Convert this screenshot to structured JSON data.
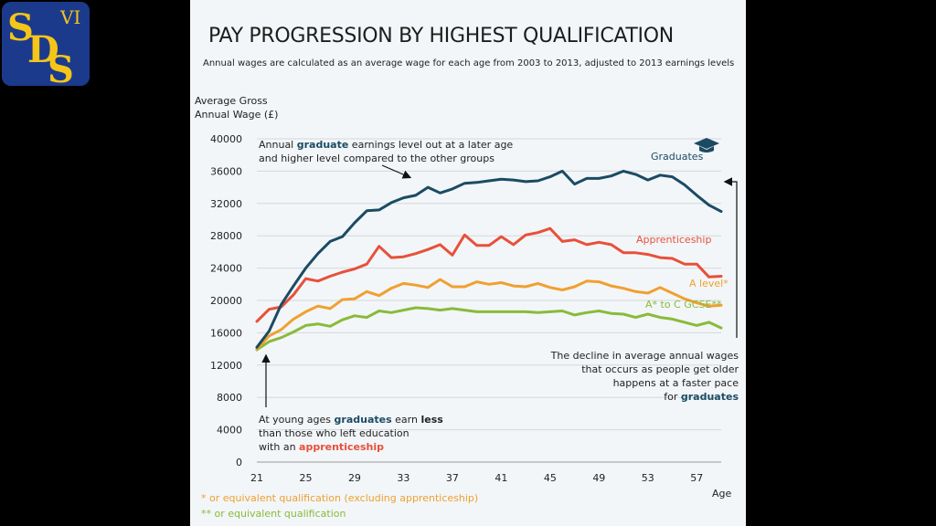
{
  "logo": {
    "text": "SDS",
    "numeral": "VI"
  },
  "header": {
    "title": "PAY PROGRESSION BY HIGHEST QUALIFICATION",
    "subtitle": "Annual wages are calculated as an average wage for each age from 2003 to 2013, adjusted to 2013 earnings levels"
  },
  "annotations": {
    "top": {
      "l1a": "Annual ",
      "l1b": "graduate",
      "l1c": " earnings level out at a later age",
      "l2": "and higher level compared to the other groups"
    },
    "bottom": {
      "l1a": "At young ages ",
      "l1b": "graduates",
      "l1c": " earn ",
      "l1d": "less",
      "l2": "than those who left education",
      "l3a": "with an ",
      "l3b": "apprenticeship"
    },
    "right": {
      "l1": "The decline in average annual wages",
      "l2": "that occurs as people get older",
      "l3": "happens at a faster pace",
      "l4a": "for ",
      "l4b": "graduates"
    }
  },
  "footnotes": {
    "f1": "* or equivalent qualification (excluding apprenticeship)",
    "f2": "** or equivalent qualification"
  },
  "colors": {
    "graduates": "#1b4b63",
    "apprenticeship": "#e8503a",
    "alevel": "#f0a030",
    "gcse": "#8aba3a",
    "grid": "#d4d8da"
  },
  "chart_data": {
    "type": "line",
    "ylabel_lines": [
      "Average Gross",
      "Annual Wage (£)"
    ],
    "xlabel": "Age",
    "xlim": [
      21,
      59
    ],
    "ylim": [
      0,
      40000
    ],
    "xticks": [
      21,
      25,
      29,
      33,
      37,
      41,
      45,
      49,
      53,
      57
    ],
    "yticks": [
      0,
      4000,
      8000,
      12000,
      16000,
      20000,
      24000,
      28000,
      32000,
      36000,
      40000
    ],
    "grid": true,
    "x": [
      21,
      22,
      23,
      24,
      25,
      26,
      27,
      28,
      29,
      30,
      31,
      32,
      33,
      34,
      35,
      36,
      37,
      38,
      39,
      40,
      41,
      42,
      43,
      44,
      45,
      46,
      47,
      48,
      49,
      50,
      51,
      52,
      53,
      54,
      55,
      56,
      57,
      58,
      59
    ],
    "series": [
      {
        "name": "Graduates",
        "key": "graduates",
        "values": [
          14200,
          16200,
          19500,
          21800,
          24000,
          25800,
          27300,
          27900,
          29600,
          31100,
          31200,
          32100,
          32700,
          33000,
          34000,
          33300,
          33800,
          34500,
          34600,
          34800,
          35000,
          34900,
          34700,
          34800,
          35300,
          36000,
          34400,
          35100,
          35100,
          35400,
          36000,
          35600,
          34900,
          35500,
          35300,
          34300,
          33000,
          31800,
          31000
        ]
      },
      {
        "name": "Apprenticeship",
        "key": "apprenticeship",
        "values": [
          17400,
          18900,
          19200,
          20700,
          22700,
          22400,
          23000,
          23500,
          23900,
          24500,
          26700,
          25300,
          25400,
          25800,
          26300,
          26900,
          25600,
          28100,
          26800,
          26800,
          27900,
          26900,
          28100,
          28400,
          28900,
          27300,
          27500,
          26900,
          27200,
          26900,
          25900,
          25900,
          25700,
          25300,
          25200,
          24500,
          24500,
          22900,
          23000
        ]
      },
      {
        "name": "A level*",
        "key": "alevel",
        "values": [
          14000,
          15600,
          16400,
          17700,
          18600,
          19300,
          19000,
          20100,
          20200,
          21100,
          20600,
          21500,
          22100,
          21900,
          21600,
          22600,
          21700,
          21700,
          22300,
          22000,
          22200,
          21800,
          21700,
          22100,
          21600,
          21300,
          21700,
          22400,
          22300,
          21800,
          21500,
          21100,
          20900,
          21600,
          20900,
          20200,
          19700,
          19300,
          19400
        ]
      },
      {
        "name": "A* to C GCSE**",
        "key": "gcse",
        "values": [
          13900,
          14900,
          15400,
          16100,
          16900,
          17100,
          16800,
          17600,
          18100,
          17900,
          18700,
          18500,
          18800,
          19100,
          19000,
          18800,
          19000,
          18800,
          18600,
          18600,
          18600,
          18600,
          18600,
          18500,
          18600,
          18700,
          18200,
          18500,
          18700,
          18400,
          18300,
          17900,
          18300,
          17900,
          17700,
          17300,
          16900,
          17300,
          16600
        ]
      }
    ]
  }
}
